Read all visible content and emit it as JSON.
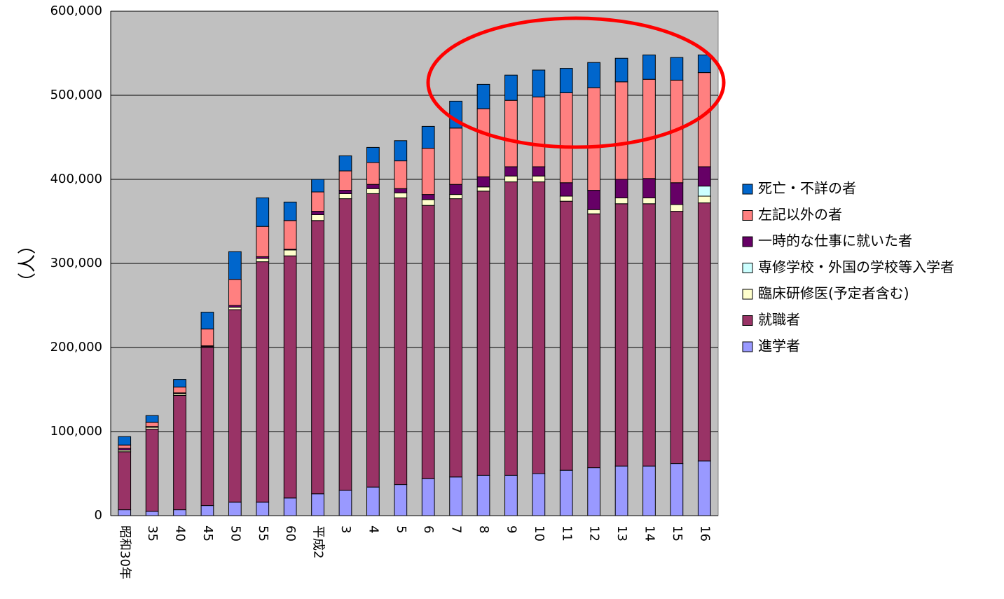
{
  "chart_data": {
    "type": "bar",
    "stacked": true,
    "ylabel": "（人）",
    "ylim": [
      0,
      600000
    ],
    "yticks": [
      0,
      100000,
      200000,
      300000,
      400000,
      500000,
      600000
    ],
    "ytick_labels": [
      "0",
      "100,000",
      "200,000",
      "300,000",
      "400,000",
      "500,000",
      "600,000"
    ],
    "grid": true,
    "legend_position": "right",
    "categories": [
      "昭和30年",
      "35",
      "40",
      "45",
      "50",
      "55",
      "60",
      "平成2",
      "3",
      "4",
      "5",
      "6",
      "7",
      "8",
      "9",
      "10",
      "11",
      "12",
      "13",
      "14",
      "15",
      "16"
    ],
    "series": [
      {
        "name": "進学者",
        "color": "#9999ff",
        "values": [
          7000,
          5000,
          7000,
          12000,
          16000,
          16000,
          21000,
          26000,
          30000,
          34000,
          37000,
          44000,
          46000,
          48000,
          48000,
          50000,
          54000,
          57000,
          59000,
          59000,
          62000,
          65000
        ]
      },
      {
        "name": "就職者",
        "color": "#993366",
        "values": [
          69000,
          98000,
          136000,
          188000,
          229000,
          286000,
          288000,
          325000,
          347000,
          349000,
          341000,
          325000,
          331000,
          338000,
          349000,
          347000,
          320000,
          302000,
          312000,
          312000,
          300000,
          307000
        ]
      },
      {
        "name": "臨床研修医(予定者含む)",
        "color": "#ffffcc",
        "values": [
          2000,
          2000,
          2000,
          1000,
          3000,
          4000,
          7000,
          7000,
          6000,
          6000,
          6000,
          7000,
          5000,
          5000,
          7000,
          7000,
          6000,
          5000,
          7000,
          7000,
          8000,
          8000
        ]
      },
      {
        "name": "専修学校・外国の学校等入学者",
        "color": "#ccffff",
        "values": [
          0,
          0,
          0,
          0,
          0,
          0,
          0,
          0,
          0,
          0,
          0,
          0,
          0,
          0,
          0,
          0,
          0,
          0,
          0,
          0,
          0,
          12000
        ]
      },
      {
        "name": "一時的な仕事に就いた者",
        "color": "#660066",
        "values": [
          2000,
          1000,
          1000,
          1000,
          2000,
          2000,
          1000,
          4000,
          4000,
          5000,
          5000,
          6000,
          12000,
          12000,
          11000,
          11000,
          16000,
          23000,
          22000,
          23000,
          26000,
          23000
        ]
      },
      {
        "name": "左記以外の者",
        "color": "#ff8080",
        "values": [
          4000,
          5000,
          7000,
          20000,
          31000,
          36000,
          34000,
          23000,
          23000,
          26000,
          33000,
          55000,
          67000,
          81000,
          79000,
          83000,
          107000,
          122000,
          116000,
          118000,
          122000,
          112000
        ]
      },
      {
        "name": "死亡・不詳の者",
        "color": "#0066cc",
        "values": [
          10000,
          8000,
          9000,
          20000,
          33000,
          34000,
          22000,
          15000,
          18000,
          18000,
          24000,
          26000,
          32000,
          29000,
          30000,
          32000,
          29000,
          30000,
          28000,
          29000,
          27000,
          21000
        ]
      }
    ],
    "annotation": {
      "type": "ellipse",
      "color": "#ff0000"
    }
  }
}
